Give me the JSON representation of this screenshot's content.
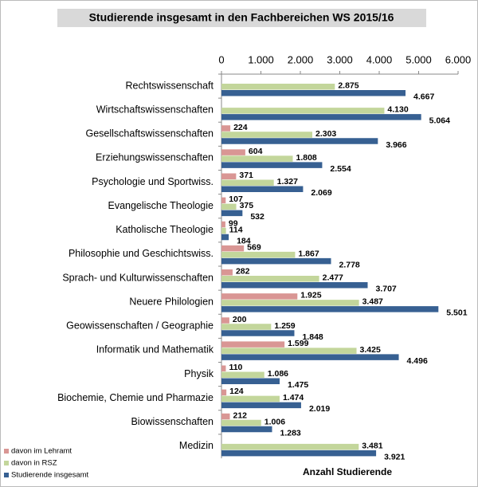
{
  "chart_data": {
    "type": "barh",
    "title": "Studierende insgesamt in den Fachbereichen WS 2015/16",
    "xlabel": "Anzahl Studierende",
    "categories": [
      "Rechtswissenschaft",
      "Wirtschaftswissenschaften",
      "Gesellschaftswissenschaften",
      "Erziehungswissenschaften",
      "Psychologie und Sportwiss.",
      "Evangelische Theologie",
      "Katholische Theologie",
      "Philosophie und Geschichtswiss.",
      "Sprach- und Kulturwissenschaften",
      "Neuere Philologien",
      "Geowissenschaften / Geographie",
      "Informatik und Mathematik",
      "Physik",
      "Biochemie, Chemie und Pharmazie",
      "Biowissenschaften",
      "Medizin"
    ],
    "series": [
      {
        "name": "davon im Lehramt",
        "color": "#d99694",
        "values": [
          null,
          null,
          224,
          604,
          371,
          107,
          99,
          569,
          282,
          1925,
          200,
          1599,
          110,
          124,
          212,
          null
        ],
        "value_labels": [
          null,
          null,
          "224",
          "604",
          "371",
          "107",
          "99",
          "569",
          "282",
          "1.925",
          "200",
          "1.599",
          "110",
          "124",
          "212",
          null
        ]
      },
      {
        "name": "davon in RSZ",
        "color": "#c3d69b",
        "values": [
          2875,
          4130,
          2303,
          1808,
          1327,
          375,
          114,
          1867,
          2477,
          3487,
          1259,
          3425,
          1086,
          1474,
          1006,
          3481
        ],
        "value_labels": [
          "2.875",
          "4.130",
          "2.303",
          "1.808",
          "1.327",
          "375",
          "114",
          "1.867",
          "2.477",
          "3.487",
          "1.259",
          "3.425",
          "1.086",
          "1.474",
          "1.006",
          "3.481"
        ]
      },
      {
        "name": "Studierende insgesamt",
        "color": "#376092",
        "values": [
          4667,
          5064,
          3966,
          2554,
          2069,
          532,
          184,
          2778,
          3707,
          5501,
          1848,
          4496,
          1475,
          2019,
          1283,
          3921
        ],
        "value_labels": [
          "4.667",
          "5.064",
          "3.966",
          "2.554",
          "2.069",
          "532",
          "184",
          "2.778",
          "3.707",
          "5.501",
          "1.848",
          "4.496",
          "1.475",
          "2.019",
          "1.283",
          "3.921"
        ]
      }
    ],
    "xlim": [
      0,
      6000
    ],
    "xticks": [
      0,
      {
        "value": 1000,
        "label": "1.000"
      },
      {
        "value": 2000,
        "label": "2.000"
      },
      {
        "value": 3000,
        "label": "3.000"
      },
      {
        "value": 4000,
        "label": "4.000"
      },
      {
        "value": 5000,
        "label": "5.000"
      },
      {
        "value": 6000,
        "label": "6.000"
      }
    ],
    "grid": false,
    "legend": "lower left"
  }
}
